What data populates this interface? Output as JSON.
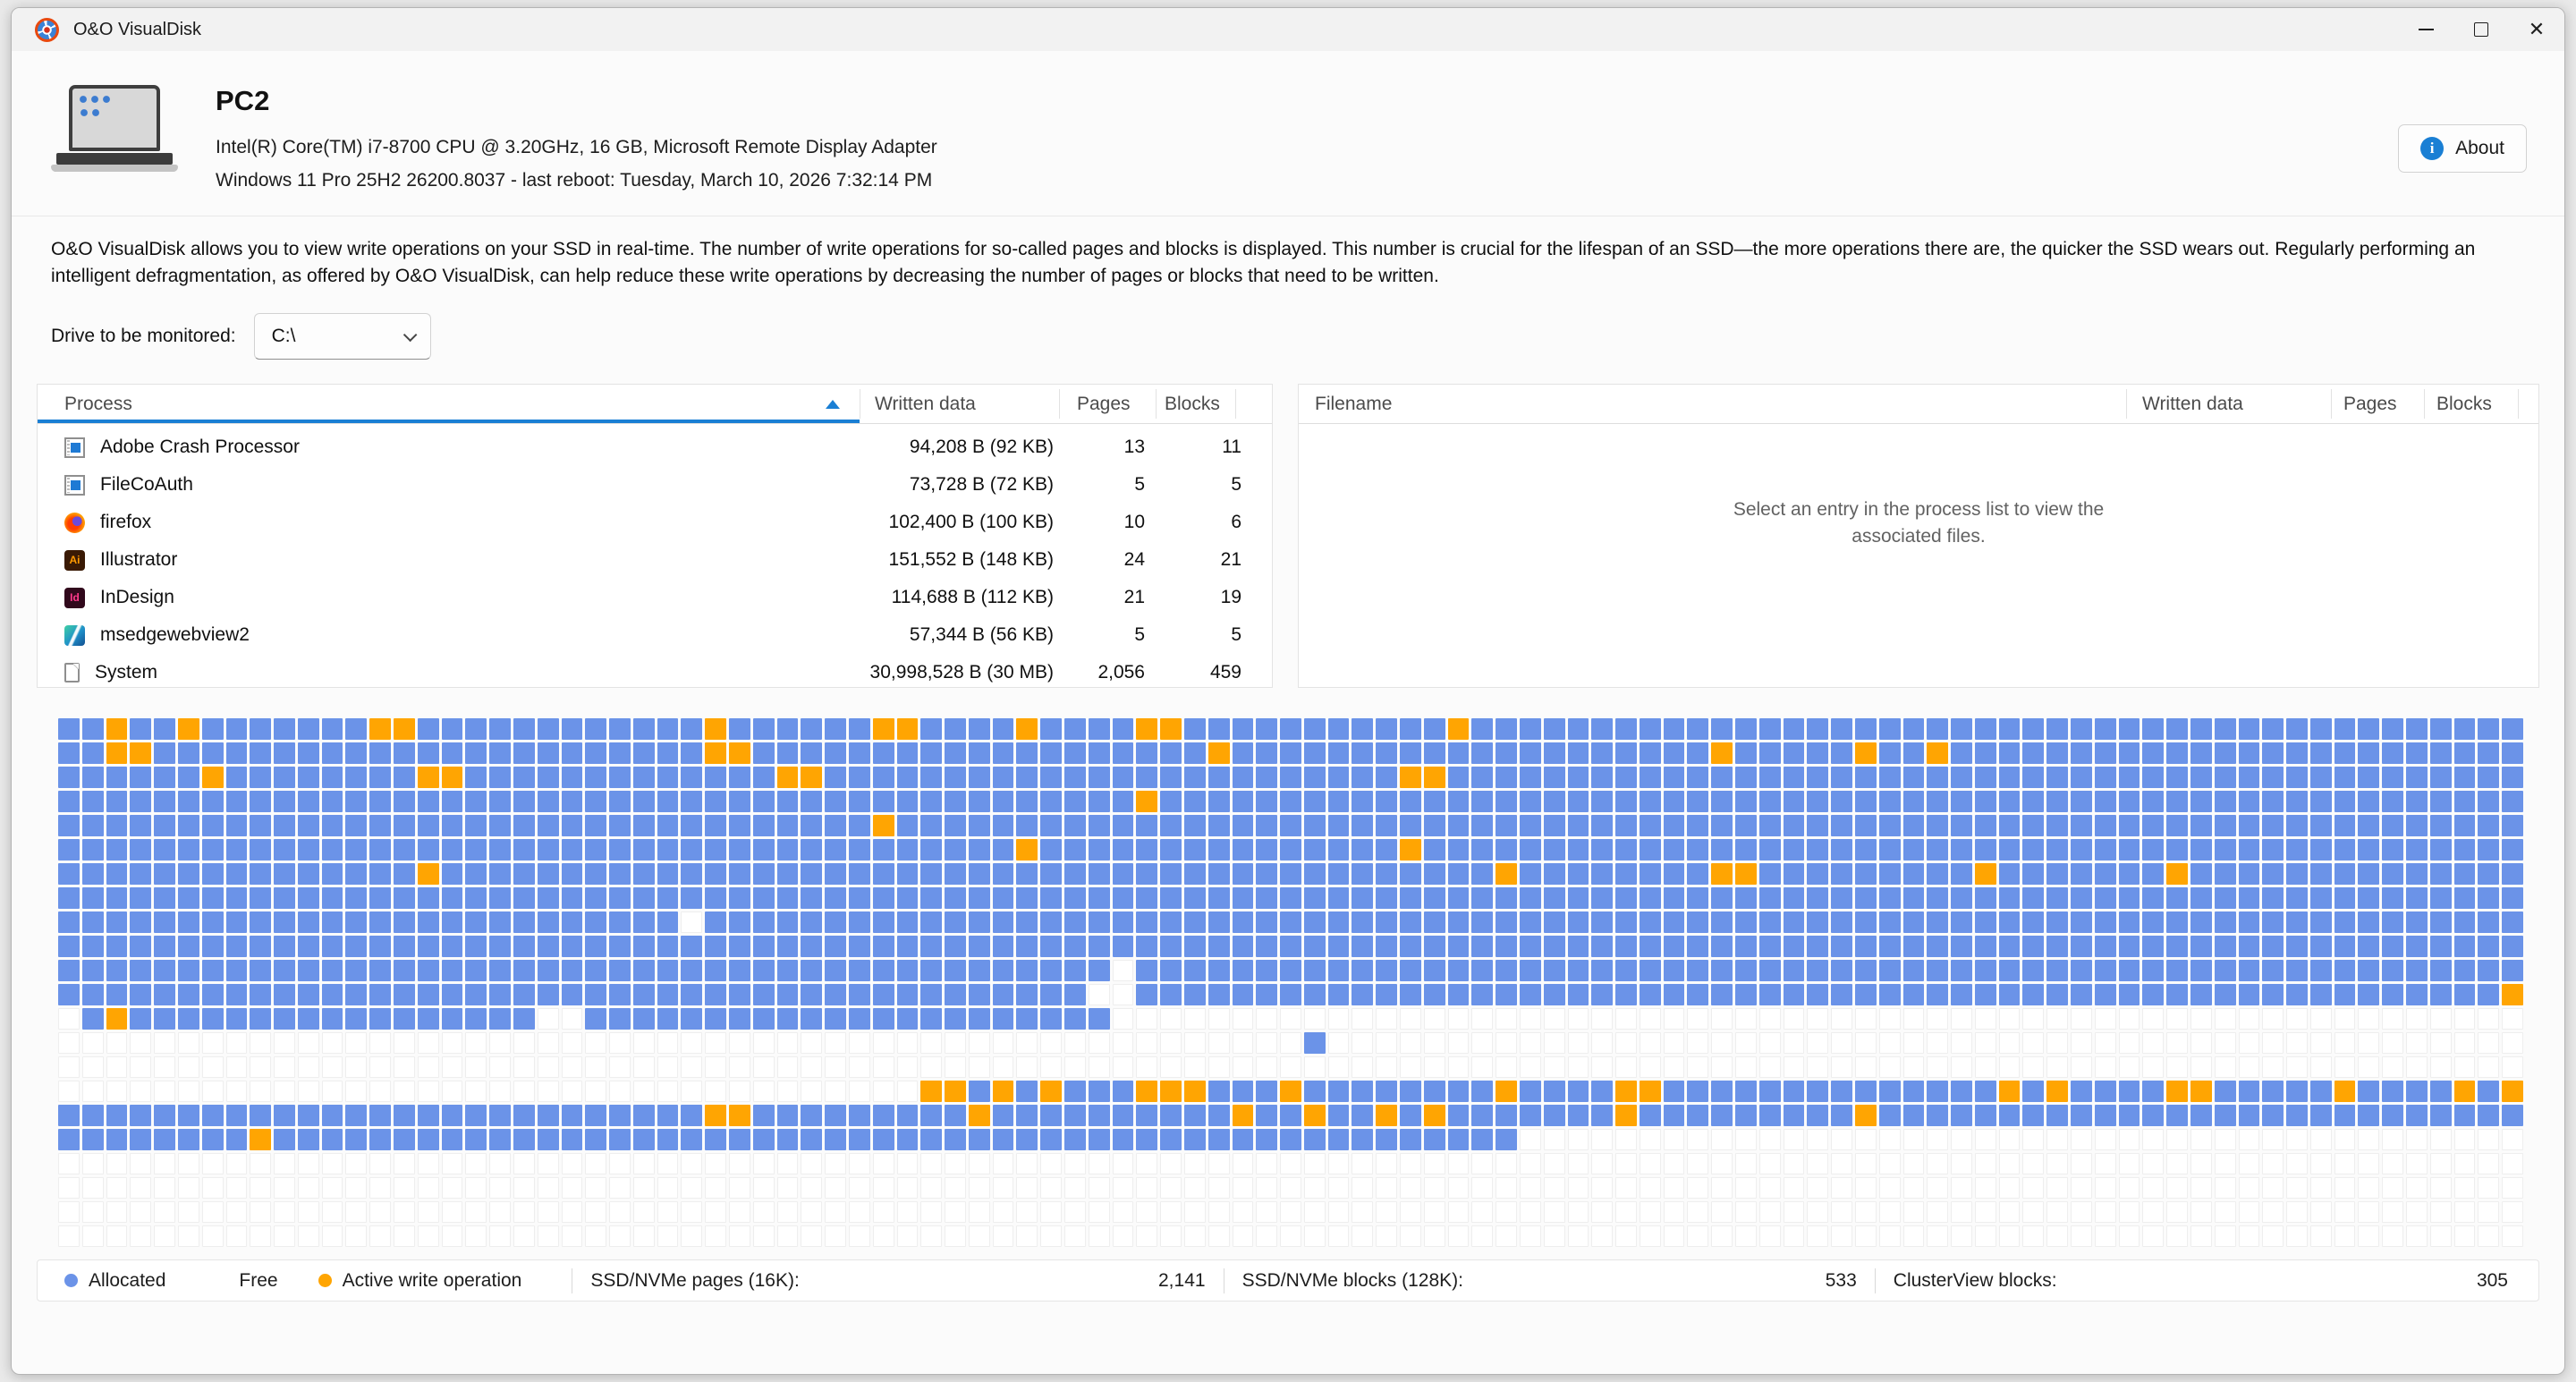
{
  "titlebar": {
    "title": "O&O VisualDisk"
  },
  "header": {
    "pc_name": "PC2",
    "cpu_line": "Intel(R) Core(TM) i7-8700 CPU @ 3.20GHz, 16 GB, Microsoft Remote Display Adapter",
    "os_line": "Windows 11 Pro 25H2 26200.8037 - last reboot: Tuesday, March 10, 2026 7:32:14 PM",
    "about_label": "About"
  },
  "description": "O&O VisualDisk allows you to view write operations on your SSD in real-time. The number of write operations for so-called pages and blocks is displayed. This number is crucial for the lifespan of an SSD—the more operations there are, the quicker the SSD wears out. Regularly performing an intelligent defragmentation, as offered by O&O VisualDisk, can help reduce these write operations by decreasing the number of pages or blocks that need to be written.",
  "drive": {
    "label": "Drive to be monitored:",
    "selected": "C:\\"
  },
  "process_table": {
    "columns": [
      "Process",
      "Written data",
      "Pages",
      "Blocks"
    ],
    "rows": [
      {
        "icon": "app-window",
        "icon_text": "",
        "name": "Adobe Crash Processor",
        "written": "94,208 B (92 KB)",
        "pages": "13",
        "blocks": "11"
      },
      {
        "icon": "app-window",
        "icon_text": "",
        "name": "FileCoAuth",
        "written": "73,728 B (72 KB)",
        "pages": "5",
        "blocks": "5"
      },
      {
        "icon": "firefox",
        "icon_text": "",
        "name": "firefox",
        "written": "102,400 B (100 KB)",
        "pages": "10",
        "blocks": "6"
      },
      {
        "icon": "illustrator",
        "icon_text": "Ai",
        "name": "Illustrator",
        "written": "151,552 B (148 KB)",
        "pages": "24",
        "blocks": "21"
      },
      {
        "icon": "indesign",
        "icon_text": "Id",
        "name": "InDesign",
        "written": "114,688 B (112 KB)",
        "pages": "21",
        "blocks": "19"
      },
      {
        "icon": "msedge",
        "icon_text": "",
        "name": "msedgewebview2",
        "written": "57,344 B (56 KB)",
        "pages": "5",
        "blocks": "5"
      },
      {
        "icon": "system",
        "icon_text": "",
        "name": "System",
        "written": "30,998,528 B (30 MB)",
        "pages": "2,056",
        "blocks": "459"
      }
    ]
  },
  "file_table": {
    "columns": [
      "Filename",
      "Written data",
      "Pages",
      "Blocks"
    ],
    "placeholder": "Select an entry in the process list to view the associated files."
  },
  "legend": {
    "allocated": "Allocated",
    "free": "Free",
    "active": "Active write operation"
  },
  "stats": [
    {
      "label": "SSD/NVMe pages (16K):",
      "value": "2,141"
    },
    {
      "label": "SSD/NVMe blocks (128K):",
      "value": "533"
    },
    {
      "label": "ClusterView blocks:",
      "value": "305"
    }
  ],
  "colors": {
    "accent": "#1a7fd4",
    "allocated": "#6b93e8",
    "active": "#ffa502",
    "free": "#ffffff"
  },
  "grid": {
    "cols": 103,
    "legend_note": "base fill per row; a=allocated ranges, f=free ranges, w=active-write cells",
    "row_specs": [
      {
        "base": "a",
        "w": [
          2,
          5,
          13,
          14,
          27,
          34,
          35,
          40,
          45,
          46,
          58
        ]
      },
      {
        "base": "a",
        "w": [
          2,
          3,
          27,
          28,
          48,
          69,
          75,
          78
        ]
      },
      {
        "base": "a",
        "w": [
          6,
          15,
          16,
          30,
          31,
          56,
          57
        ]
      },
      {
        "base": "a",
        "w": [
          45
        ]
      },
      {
        "base": "a",
        "w": [
          34
        ]
      },
      {
        "base": "a",
        "w": [
          40,
          56
        ]
      },
      {
        "base": "a",
        "w": [
          15,
          60,
          69,
          70,
          80,
          88
        ]
      },
      {
        "base": "a"
      },
      {
        "base": "a",
        "f": [
          [
            26,
            26
          ]
        ]
      },
      {
        "base": "a"
      },
      {
        "base": "a",
        "f": [
          [
            44,
            44
          ]
        ]
      },
      {
        "base": "a",
        "f": [
          [
            43,
            44
          ]
        ],
        "w": [
          102
        ]
      },
      {
        "base": "a",
        "f": [
          [
            0,
            0
          ],
          [
            20,
            21
          ],
          [
            44,
            102
          ]
        ],
        "w": [
          2
        ]
      },
      {
        "base": "f",
        "a": [
          [
            52,
            52
          ]
        ]
      },
      {
        "base": "f"
      },
      {
        "base": "f",
        "a": [
          [
            36,
            102
          ]
        ],
        "w": [
          36,
          37,
          39,
          41,
          45,
          46,
          47,
          51,
          60,
          65,
          66,
          81,
          83,
          88,
          89,
          95,
          100,
          102
        ]
      },
      {
        "base": "a",
        "w": [
          27,
          28,
          38,
          49,
          52,
          55,
          57,
          65,
          75
        ]
      },
      {
        "base": "a",
        "f": [
          [
            61,
            102
          ]
        ],
        "w": [
          8
        ]
      },
      {
        "base": "f"
      },
      {
        "base": "f"
      },
      {
        "base": "f"
      },
      {
        "base": "f"
      }
    ]
  }
}
